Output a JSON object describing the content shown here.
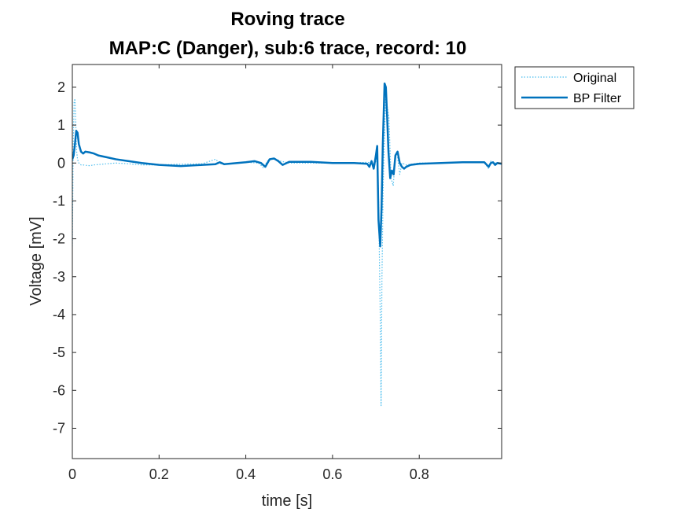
{
  "chart_data": {
    "type": "line",
    "title": [
      "Roving trace",
      "MAP:C (Danger), sub:6 trace, record: 10"
    ],
    "xlabel": "time [s]",
    "ylabel": "Voltage [mV]",
    "xlim": [
      0,
      0.99
    ],
    "ylim": [
      -7.8,
      2.6
    ],
    "xticks": [
      0,
      0.2,
      0.4,
      0.6,
      0.8
    ],
    "xtick_labels": [
      "0",
      "0.2",
      "0.4",
      "0.6",
      "0.8"
    ],
    "yticks": [
      2,
      1,
      0,
      -1,
      -2,
      -3,
      -4,
      -5,
      -6,
      -7
    ],
    "ytick_labels": [
      "2",
      "1",
      "0",
      "-1",
      "-2",
      "-3",
      "-4",
      "-5",
      "-6",
      "-7"
    ],
    "grid": false,
    "legend_position": "outside-top-right",
    "series": [
      {
        "name": "Original",
        "style": "dotted",
        "color": "#4DBEEE",
        "x": [
          0,
          0.002,
          0.004,
          0.006,
          0.008,
          0.01,
          0.012,
          0.015,
          0.02,
          0.025,
          0.03,
          0.04,
          0.05,
          0.07,
          0.1,
          0.13,
          0.16,
          0.2,
          0.25,
          0.3,
          0.33,
          0.335,
          0.34,
          0.36,
          0.4,
          0.43,
          0.44,
          0.45,
          0.46,
          0.47,
          0.48,
          0.5,
          0.55,
          0.6,
          0.65,
          0.68,
          0.69,
          0.695,
          0.7,
          0.703,
          0.706,
          0.71,
          0.712,
          0.714,
          0.717,
          0.72,
          0.723,
          0.726,
          0.73,
          0.735,
          0.74,
          0.745,
          0.75,
          0.755,
          0.76,
          0.77,
          0.8,
          0.85,
          0.9,
          0.95,
          0.96,
          0.965,
          0.97,
          0.98,
          0.99
        ],
        "y": [
          -2.2,
          0.3,
          1.6,
          1.7,
          1.0,
          0.3,
          0.1,
          0.0,
          -0.05,
          -0.05,
          -0.06,
          -0.07,
          -0.05,
          -0.03,
          0.0,
          -0.02,
          -0.05,
          -0.05,
          -0.03,
          -0.02,
          0.1,
          0.05,
          -0.02,
          -0.02,
          0.02,
          0.0,
          -0.12,
          0.05,
          0.1,
          0.1,
          0.05,
          0.0,
          0.0,
          0.0,
          0.0,
          0.02,
          0.0,
          -0.15,
          0.05,
          0.3,
          -0.8,
          -4.0,
          -6.4,
          -3.0,
          -0.5,
          0.8,
          1.9,
          1.5,
          1.2,
          -0.4,
          -0.6,
          0.2,
          0.15,
          -0.3,
          0.0,
          -0.05,
          0.0,
          0.0,
          0.02,
          0.02,
          -0.15,
          0.05,
          0.0,
          0.0,
          -0.02
        ]
      },
      {
        "name": "BP Filter",
        "style": "solid",
        "color": "#0072BD",
        "x": [
          0,
          0.003,
          0.006,
          0.009,
          0.012,
          0.015,
          0.02,
          0.025,
          0.03,
          0.04,
          0.05,
          0.06,
          0.08,
          0.1,
          0.13,
          0.16,
          0.2,
          0.25,
          0.3,
          0.33,
          0.34,
          0.35,
          0.36,
          0.38,
          0.4,
          0.42,
          0.435,
          0.445,
          0.455,
          0.465,
          0.475,
          0.485,
          0.5,
          0.55,
          0.6,
          0.65,
          0.68,
          0.685,
          0.69,
          0.695,
          0.7,
          0.703,
          0.706,
          0.71,
          0.713,
          0.716,
          0.72,
          0.723,
          0.726,
          0.729,
          0.733,
          0.737,
          0.741,
          0.745,
          0.75,
          0.755,
          0.76,
          0.765,
          0.77,
          0.78,
          0.8,
          0.85,
          0.9,
          0.95,
          0.96,
          0.965,
          0.97,
          0.975,
          0.98,
          0.99
        ],
        "y": [
          0.1,
          0.2,
          0.5,
          0.85,
          0.8,
          0.5,
          0.3,
          0.25,
          0.3,
          0.28,
          0.25,
          0.2,
          0.15,
          0.1,
          0.05,
          0.0,
          -0.05,
          -0.08,
          -0.05,
          -0.03,
          0.02,
          -0.03,
          -0.02,
          0.0,
          0.02,
          0.05,
          0.0,
          -0.1,
          0.1,
          0.12,
          0.05,
          -0.05,
          0.03,
          0.03,
          0.0,
          0.0,
          -0.02,
          -0.1,
          0.05,
          -0.15,
          0.2,
          0.45,
          -1.5,
          -2.2,
          -1.2,
          0.5,
          2.1,
          2.0,
          1.2,
          0.3,
          -0.4,
          -0.2,
          -0.3,
          0.2,
          0.3,
          0.0,
          -0.1,
          -0.15,
          -0.1,
          -0.05,
          -0.02,
          0.0,
          0.02,
          0.02,
          -0.1,
          0.0,
          0.02,
          -0.05,
          0.0,
          -0.02
        ]
      }
    ]
  }
}
